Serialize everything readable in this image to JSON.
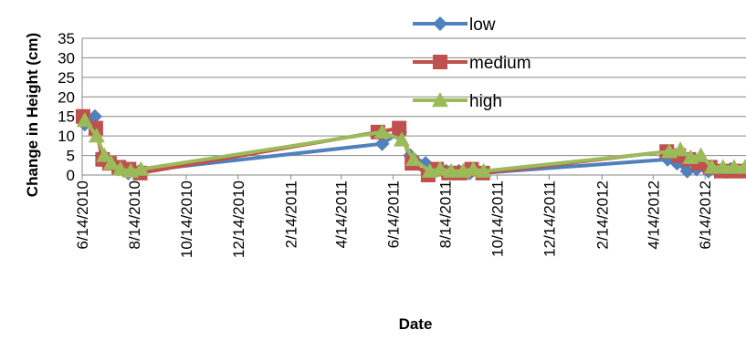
{
  "chart_data": {
    "type": "line",
    "title": "",
    "xlabel": "Date",
    "ylabel": "Change in Height (cm)",
    "ylim": [
      0,
      35
    ],
    "yticks": [
      "0",
      "5",
      "10",
      "15",
      "20",
      "25",
      "30",
      "35"
    ],
    "xlim": [
      "2010-06-14",
      "2012-08-01"
    ],
    "xticks": [
      {
        "date": "2010-06-14",
        "label": "6/14/2010"
      },
      {
        "date": "2010-08-14",
        "label": "8/14/2010"
      },
      {
        "date": "2010-10-14",
        "label": "10/14/2010"
      },
      {
        "date": "2010-12-14",
        "label": "12/14/2010"
      },
      {
        "date": "2011-02-14",
        "label": "2/14/2011"
      },
      {
        "date": "2011-04-14",
        "label": "4/14/2011"
      },
      {
        "date": "2011-06-14",
        "label": "6/14/2011"
      },
      {
        "date": "2011-08-14",
        "label": "8/14/2011"
      },
      {
        "date": "2011-10-14",
        "label": "10/14/2011"
      },
      {
        "date": "2011-12-14",
        "label": "12/14/2011"
      },
      {
        "date": "2012-02-14",
        "label": "2/14/2012"
      },
      {
        "date": "2012-04-14",
        "label": "4/14/2012"
      },
      {
        "date": "2012-06-14",
        "label": "6/14/2012"
      }
    ],
    "grid": true,
    "legend_position": "top-right",
    "series": [
      {
        "name": "low",
        "color": "#4F81BD",
        "marker": "diamond",
        "points": [
          {
            "x": "2010-06-17",
            "y": 13
          },
          {
            "x": "2010-06-29",
            "y": 15
          },
          {
            "x": "2010-07-07",
            "y": 5
          },
          {
            "x": "2010-07-15",
            "y": 3
          },
          {
            "x": "2010-07-26",
            "y": 1.5
          },
          {
            "x": "2010-08-07",
            "y": 0.5
          },
          {
            "x": "2010-08-20",
            "y": 1
          },
          {
            "x": "2011-06-01",
            "y": 8
          },
          {
            "x": "2011-06-22",
            "y": 11
          },
          {
            "x": "2011-07-04",
            "y": 5
          },
          {
            "x": "2011-07-22",
            "y": 3
          },
          {
            "x": "2011-08-01",
            "y": 1
          },
          {
            "x": "2011-08-15",
            "y": 1
          },
          {
            "x": "2011-08-30",
            "y": 1
          },
          {
            "x": "2011-09-12",
            "y": 0.5
          },
          {
            "x": "2011-09-25",
            "y": 0.5
          },
          {
            "x": "2012-05-01",
            "y": 4
          },
          {
            "x": "2012-05-12",
            "y": 3
          },
          {
            "x": "2012-05-24",
            "y": 1
          },
          {
            "x": "2012-06-04",
            "y": 1.5
          },
          {
            "x": "2012-06-18",
            "y": 1
          },
          {
            "x": "2012-07-01",
            "y": 1
          },
          {
            "x": "2012-07-14",
            "y": 1.5
          },
          {
            "x": "2012-07-28",
            "y": 1
          }
        ]
      },
      {
        "name": "medium",
        "color": "#C0504D",
        "marker": "square",
        "points": [
          {
            "x": "2010-06-15",
            "y": 15
          },
          {
            "x": "2010-06-30",
            "y": 12
          },
          {
            "x": "2010-07-08",
            "y": 4
          },
          {
            "x": "2010-07-16",
            "y": 3
          },
          {
            "x": "2010-07-27",
            "y": 2
          },
          {
            "x": "2010-08-08",
            "y": 1.5
          },
          {
            "x": "2010-08-21",
            "y": 0.5
          },
          {
            "x": "2011-05-27",
            "y": 11
          },
          {
            "x": "2011-06-21",
            "y": 12
          },
          {
            "x": "2011-07-06",
            "y": 3
          },
          {
            "x": "2011-07-25",
            "y": 0
          },
          {
            "x": "2011-08-04",
            "y": 1.5
          },
          {
            "x": "2011-08-18",
            "y": 0.5
          },
          {
            "x": "2011-09-01",
            "y": 0.5
          },
          {
            "x": "2011-09-14",
            "y": 1.5
          },
          {
            "x": "2011-09-27",
            "y": 0.5
          },
          {
            "x": "2012-04-30",
            "y": 6
          },
          {
            "x": "2012-05-14",
            "y": 5
          },
          {
            "x": "2012-05-26",
            "y": 4
          },
          {
            "x": "2012-06-06",
            "y": 3
          },
          {
            "x": "2012-06-20",
            "y": 2
          },
          {
            "x": "2012-07-03",
            "y": 1
          },
          {
            "x": "2012-07-16",
            "y": 1
          },
          {
            "x": "2012-07-30",
            "y": 1
          }
        ]
      },
      {
        "name": "high",
        "color": "#9BBB59",
        "marker": "triangle",
        "points": [
          {
            "x": "2010-06-17",
            "y": 14
          },
          {
            "x": "2010-07-01",
            "y": 10
          },
          {
            "x": "2010-07-10",
            "y": 5
          },
          {
            "x": "2010-07-18",
            "y": 3
          },
          {
            "x": "2010-07-29",
            "y": 1.5
          },
          {
            "x": "2010-08-10",
            "y": 1
          },
          {
            "x": "2010-08-22",
            "y": 1.5
          },
          {
            "x": "2011-06-01",
            "y": 11
          },
          {
            "x": "2011-06-24",
            "y": 9
          },
          {
            "x": "2011-07-08",
            "y": 4
          },
          {
            "x": "2011-07-27",
            "y": 1
          },
          {
            "x": "2011-08-08",
            "y": 1.5
          },
          {
            "x": "2011-08-21",
            "y": 1
          },
          {
            "x": "2011-09-04",
            "y": 1
          },
          {
            "x": "2011-09-16",
            "y": 1.5
          },
          {
            "x": "2011-09-28",
            "y": 1
          },
          {
            "x": "2012-05-03",
            "y": 6
          },
          {
            "x": "2012-05-16",
            "y": 6.5
          },
          {
            "x": "2012-05-28",
            "y": 4.5
          },
          {
            "x": "2012-06-09",
            "y": 5
          },
          {
            "x": "2012-06-22",
            "y": 2
          },
          {
            "x": "2012-07-05",
            "y": 2
          },
          {
            "x": "2012-07-18",
            "y": 2
          },
          {
            "x": "2012-07-31",
            "y": 2
          }
        ]
      }
    ]
  }
}
